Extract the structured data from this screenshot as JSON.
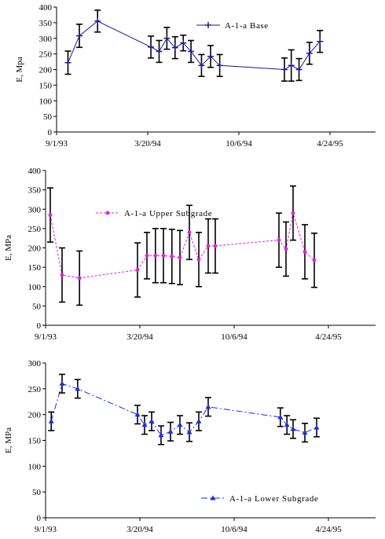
{
  "chart_data": [
    {
      "type": "line",
      "title": "",
      "xlabel": "",
      "ylabel": "E, Mpa",
      "ylim": [
        0,
        400
      ],
      "yticks": [
        0,
        50,
        100,
        150,
        200,
        250,
        300,
        350,
        400
      ],
      "xtick_labels": [
        "9/1/93",
        "3/20/94",
        "10/6/94",
        "4/24/95"
      ],
      "grid": false,
      "legend": "top-right",
      "series": [
        {
          "name": "A-1-a Base",
          "color": "#1a1a8c",
          "style": "solid",
          "marker": "plus",
          "x": [
            0.25,
            0.5,
            0.9,
            2.07,
            2.25,
            2.42,
            2.6,
            2.78,
            2.95,
            3.18,
            3.38,
            3.58,
            5.0,
            5.15,
            5.32,
            5.55,
            5.78
          ],
          "y": [
            222,
            308,
            355,
            272,
            258,
            300,
            270,
            285,
            258,
            213,
            242,
            213,
            200,
            213,
            200,
            252,
            290
          ],
          "err": [
            37,
            37,
            35,
            35,
            35,
            35,
            35,
            25,
            35,
            35,
            35,
            35,
            37,
            50,
            35,
            35,
            35
          ]
        }
      ]
    },
    {
      "type": "line",
      "title": "",
      "xlabel": "",
      "ylabel": "E, MPa",
      "ylim": [
        0,
        400
      ],
      "yticks": [
        0,
        50,
        100,
        150,
        200,
        250,
        300,
        350,
        400
      ],
      "xtick_labels": [
        "9/1/93",
        "3/20/94",
        "10/6/94",
        "4/24/95"
      ],
      "grid": false,
      "legend": "top-left",
      "series": [
        {
          "name": "A-1-a Upper Subgrade",
          "color": "#e020e0",
          "style": "dashed",
          "marker": "circle",
          "x": [
            0.1,
            0.35,
            0.72,
            1.95,
            2.15,
            2.33,
            2.5,
            2.68,
            2.85,
            3.05,
            3.25,
            3.45,
            3.6,
            4.95,
            5.1,
            5.25,
            5.5,
            5.7
          ],
          "y": [
            285,
            130,
            122,
            143,
            180,
            180,
            180,
            178,
            175,
            240,
            170,
            205,
            205,
            220,
            197,
            290,
            190,
            168
          ],
          "err": [
            70,
            70,
            70,
            70,
            60,
            70,
            70,
            70,
            70,
            70,
            70,
            70,
            70,
            70,
            70,
            70,
            70,
            70
          ]
        }
      ]
    },
    {
      "type": "line",
      "title": "",
      "xlabel": "",
      "ylabel": "E, MPa",
      "ylim": [
        0,
        300
      ],
      "yticks": [
        0,
        50,
        100,
        150,
        200,
        250,
        300
      ],
      "xtick_labels": [
        "9/1/93",
        "3/20/94",
        "10/6/94",
        "4/24/95"
      ],
      "grid": false,
      "legend": "bottom-right",
      "series": [
        {
          "name": "A-1-a Lower Subgrade",
          "color": "#1a2ee0",
          "style": "dashdot",
          "marker": "triangle",
          "x": [
            0.12,
            0.35,
            0.68,
            1.95,
            2.1,
            2.25,
            2.45,
            2.65,
            2.85,
            3.05,
            3.25,
            3.45,
            4.98,
            5.12,
            5.25,
            5.5,
            5.75
          ],
          "y": [
            187,
            260,
            250,
            200,
            180,
            187,
            160,
            167,
            180,
            166,
            187,
            215,
            195,
            180,
            172,
            165,
            175
          ],
          "err": [
            18,
            18,
            18,
            18,
            18,
            18,
            18,
            18,
            18,
            18,
            18,
            18,
            18,
            18,
            18,
            18,
            18
          ]
        }
      ]
    }
  ]
}
